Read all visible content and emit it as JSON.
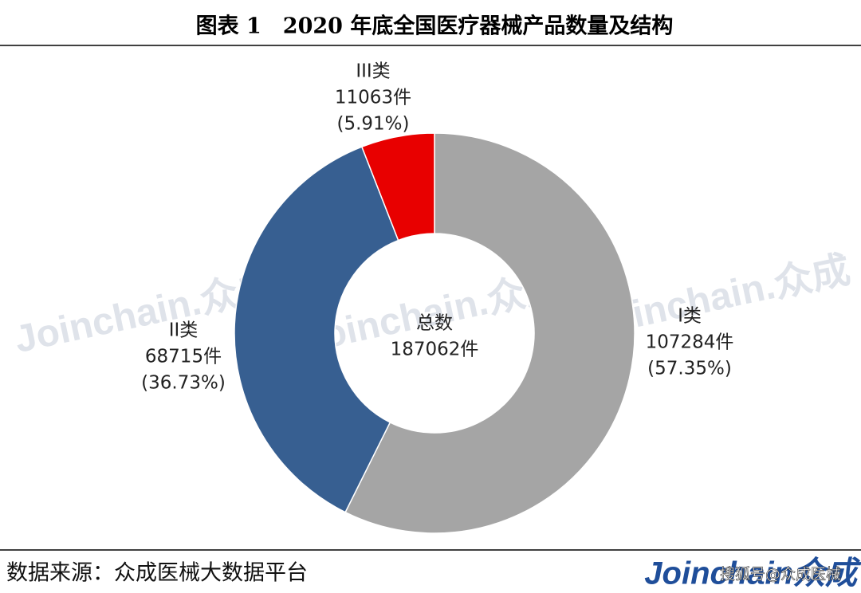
{
  "chart_data": {
    "type": "donut",
    "title": "图表 1　2020 年底全国医疗器械产品数量及结构",
    "categories": [
      "I类",
      "II类",
      "III类"
    ],
    "values": [
      107284,
      68715,
      11063
    ],
    "value_labels": [
      "107284件",
      "68715件",
      "11063件"
    ],
    "percent_labels": [
      "(57.35%)",
      "(36.73%)",
      "(5.91%)"
    ],
    "colors": [
      "#a5a5a5",
      "#375f91",
      "#e80000"
    ],
    "center_title": "总数",
    "total": 187062,
    "total_label": "187062件"
  },
  "watermark": "Joinchain.众成",
  "source": "数据来源：众成医械大数据平台",
  "logo": "Joinchain众成",
  "credit": "搜狐号@众成医械"
}
